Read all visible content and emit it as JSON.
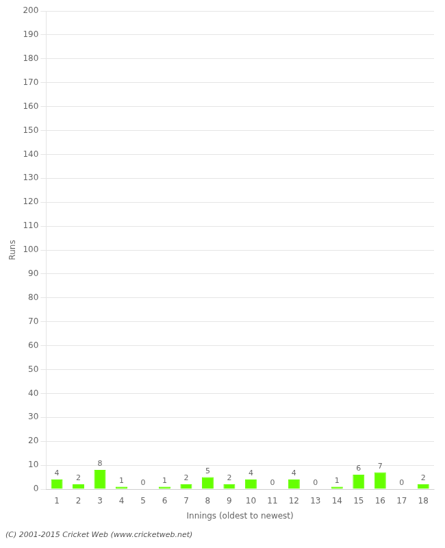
{
  "chart_data": {
    "type": "bar",
    "categories": [
      "1",
      "2",
      "3",
      "4",
      "5",
      "6",
      "7",
      "8",
      "9",
      "10",
      "11",
      "12",
      "13",
      "14",
      "15",
      "16",
      "17",
      "18"
    ],
    "values": [
      4,
      2,
      8,
      1,
      0,
      1,
      2,
      5,
      2,
      4,
      0,
      4,
      0,
      1,
      6,
      7,
      0,
      2
    ],
    "color": "#66ff00",
    "x_label": "Innings (oldest to newest)",
    "y_label": "Runs",
    "ylim": [
      0,
      200
    ],
    "yticks": [
      0,
      10,
      20,
      30,
      40,
      50,
      60,
      70,
      80,
      90,
      100,
      110,
      120,
      130,
      140,
      150,
      160,
      170,
      180,
      190,
      200
    ],
    "grid": true,
    "data_labels": true,
    "annotations": [
      "(C) 2001-2015 Cricket Web (www.cricketweb.net)"
    ]
  }
}
